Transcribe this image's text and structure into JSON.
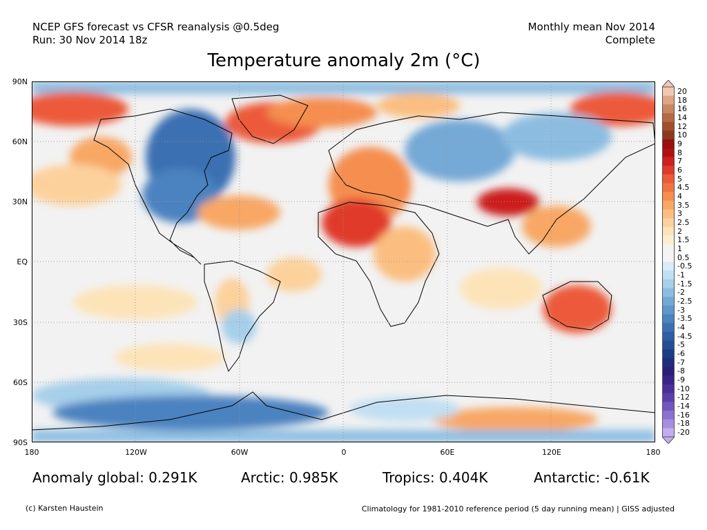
{
  "header": {
    "line1_left": "NCEP GFS forecast vs CFSR reanalysis @0.5deg",
    "line2_left": "Run: 30 Nov 2014 18z",
    "line1_right": "Monthly mean Nov 2014",
    "line2_right": "Complete"
  },
  "title": "Temperature anomaly 2m (°C)",
  "lat_labels": [
    "90N",
    "60N",
    "30N",
    "EQ",
    "30S",
    "60S",
    "90S"
  ],
  "lon_labels": [
    "180",
    "120W",
    "60W",
    "0",
    "60E",
    "120E",
    "180"
  ],
  "stats": {
    "global": "Anomaly global: 0.291K",
    "arctic": "Arctic: 0.985K",
    "tropics": "Tropics: 0.404K",
    "antarctic": "Antarctic: -0.61K"
  },
  "footer": {
    "credit": "(c) Karsten Haustein",
    "climatology": "Climatology for 1981-2010 reference period (5 day running mean) | GISS adjusted"
  },
  "colorbar": {
    "labels": [
      "20",
      "18",
      "16",
      "14",
      "12",
      "10",
      "9",
      "8",
      "7",
      "6",
      "5",
      "4.5",
      "4",
      "3.5",
      "3",
      "2.5",
      "2",
      "1.5",
      "1",
      "0.5",
      "-0.5",
      "-1",
      "-1.5",
      "-2",
      "-2.5",
      "-3",
      "-3.5",
      "-4",
      "-4.5",
      "-5",
      "-6",
      "-7",
      "-8",
      "-9",
      "-10",
      "-12",
      "-14",
      "-16",
      "-18",
      "-20"
    ],
    "colors": [
      "#f2c8b4",
      "#dfa585",
      "#c98760",
      "#b56a45",
      "#a0502f",
      "#8a3a22",
      "#9a0e0e",
      "#b01010",
      "#cc1f1f",
      "#e03a2a",
      "#ec5a3a",
      "#f27540",
      "#f58e4f",
      "#f8a765",
      "#fbbe80",
      "#fcd19c",
      "#fde3b8",
      "#fdeed2",
      "#f4f4f4",
      "#f4f4f4",
      "#d8ebf6",
      "#c1dff2",
      "#a6cfea",
      "#8cbde1",
      "#74a9d6",
      "#5f96cc",
      "#4b82c0",
      "#3b6fb2",
      "#2e5ea5",
      "#244d96",
      "#1d3c86",
      "#1f2c7a",
      "#2a1f78",
      "#3a2487",
      "#4b2f98",
      "#5d3fab",
      "#7255c0",
      "#8a70d2",
      "#a58de0",
      "#c2adef"
    ]
  },
  "map": {
    "ocean_color": "#f2f2f2",
    "land_outline": "#000000",
    "grid_color": "#999999"
  }
}
